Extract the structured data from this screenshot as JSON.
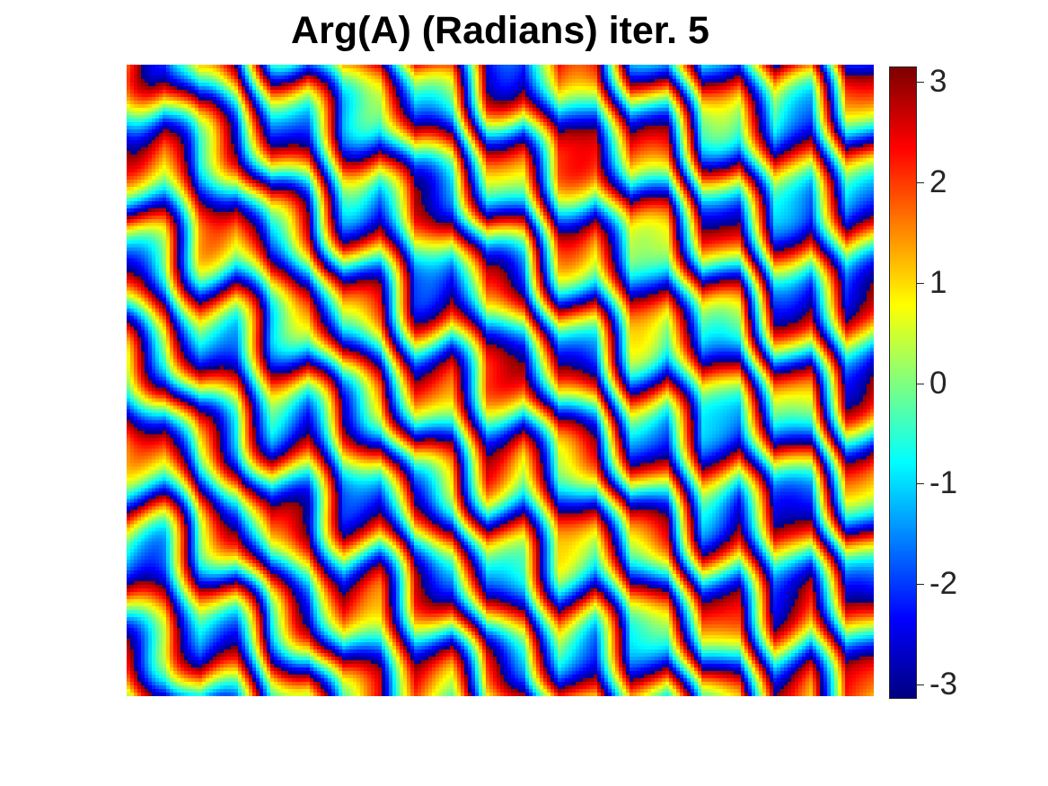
{
  "chart_data": {
    "type": "heatmap",
    "title": "Arg(A) (Radians) iter. 5",
    "xlabel": "",
    "ylabel": "",
    "axes_visible": false,
    "colormap": "jet",
    "clim": [
      -3.14159,
      3.14159
    ],
    "colorbar": {
      "location": "right",
      "ticks": [
        3,
        2,
        1,
        0,
        -1,
        -2,
        -3
      ],
      "tick_labels": [
        "3",
        "2",
        "1",
        "0",
        "-1",
        "-2",
        "-3"
      ]
    },
    "grid_size": {
      "rows": 176,
      "cols": 208
    },
    "pattern": {
      "description_units": "phase in radians, wrapped to [-pi, pi]",
      "dominant_period_cols": 20,
      "dominant_period_rows": 21,
      "texture_left": "blobby red/blue/cyan patches",
      "texture_right": "chevron (V-shaped) red/yellow/cyan stripes"
    }
  }
}
